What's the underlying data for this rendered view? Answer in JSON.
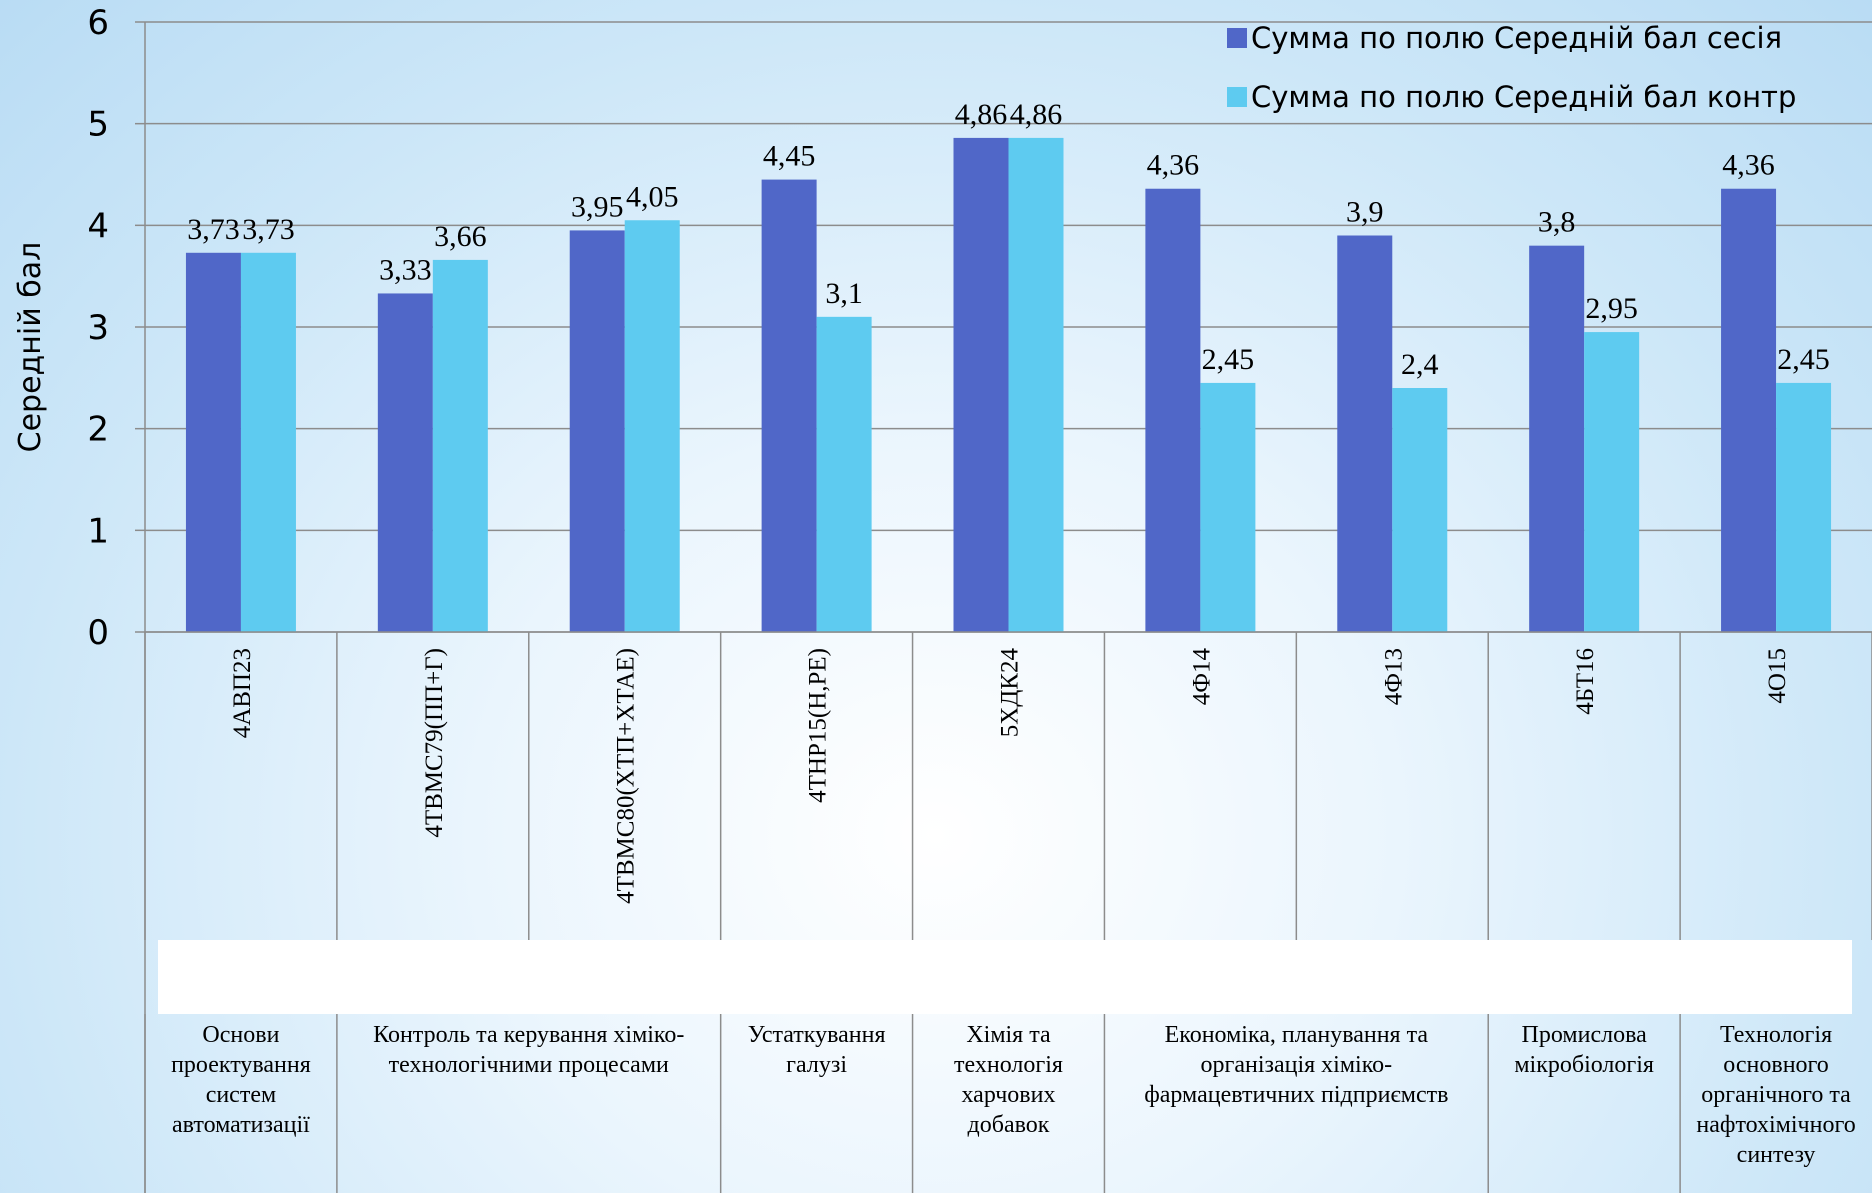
{
  "chart_data": {
    "type": "bar",
    "ylabel": "Середній бал",
    "xlabel": "",
    "ylim": [
      0,
      6
    ],
    "yticks": [
      "0",
      "1",
      "2",
      "3",
      "4",
      "5",
      "6"
    ],
    "grid": true,
    "legend_position": "top-right",
    "categories": [
      "4АВП23",
      "4ТВМС79(ПП+Г)",
      "4ТВМС80(ХТП+ХТАЕ)",
      "4ТНР15(Н,РЕ)",
      "5ХДК24",
      "4Ф14",
      "4Ф13",
      "4БТ16",
      "4О15"
    ],
    "series": [
      {
        "name": "Сумма по полю Середній бал сесія",
        "color": "#5067c8",
        "values": [
          3.73,
          3.33,
          3.95,
          4.45,
          4.86,
          4.36,
          3.9,
          3.8,
          4.36
        ],
        "labels": [
          "3,73",
          "3,33",
          "3,95",
          "4,45",
          "4,86",
          "4,36",
          "3,9",
          "3,8",
          "4,36"
        ]
      },
      {
        "name": "Сумма по полю Середній бал контр",
        "color": "#5ecbf0",
        "values": [
          3.73,
          3.66,
          4.05,
          3.1,
          4.86,
          2.45,
          2.4,
          2.95,
          2.45
        ],
        "labels": [
          "3,73",
          "3,66",
          "4,05",
          "3,1",
          "4,86",
          "2,45",
          "2,4",
          "2,95",
          "2,45"
        ]
      }
    ],
    "groups": [
      {
        "label": "Основи\nпроектування\nсистем\nавтоматизації",
        "span": 1
      },
      {
        "label": "Контроль та керування хіміко-\nтехнологічними процесами",
        "span": 2
      },
      {
        "label": "Устаткування\nгалузі",
        "span": 1
      },
      {
        "label": "Хімія та\nтехнологія\nхарчових\nдобавок",
        "span": 1
      },
      {
        "label": "Економіка, планування та\nорганізація хіміко-\nфармацевтичних підприємств",
        "span": 2
      },
      {
        "label": "Промислова\nмікробіологія",
        "span": 1
      },
      {
        "label": "Технологія\nосновного\nорганічного та\nнафтохімічного\nсинтезу",
        "span": 1
      }
    ]
  }
}
